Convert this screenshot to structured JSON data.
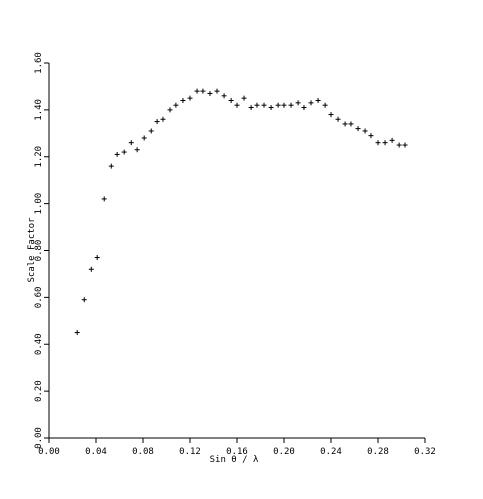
{
  "chart_data": {
    "type": "scatter",
    "title": "",
    "xlabel": "Sin θ / λ",
    "ylabel": "Scale Factor",
    "xlim": [
      0.0,
      0.32
    ],
    "ylim": [
      0.0,
      1.6
    ],
    "x_ticks": [
      "0.00",
      "0.04",
      "0.08",
      "0.12",
      "0.16",
      "0.20",
      "0.24",
      "0.28",
      "0.32"
    ],
    "y_ticks": [
      "0.00",
      "0.20",
      "0.40",
      "0.60",
      "0.80",
      "1.00",
      "1.20",
      "1.40",
      "1.60"
    ],
    "grid": false,
    "marker": "plus",
    "series": [
      {
        "x": [
          0.024,
          0.03,
          0.036,
          0.041,
          0.047,
          0.053,
          0.058,
          0.064,
          0.07,
          0.075,
          0.081,
          0.087,
          0.092,
          0.097,
          0.103,
          0.108,
          0.114,
          0.12,
          0.126,
          0.131,
          0.137,
          0.143,
          0.149,
          0.155,
          0.16,
          0.166,
          0.172,
          0.177,
          0.183,
          0.189,
          0.195,
          0.2,
          0.206,
          0.212,
          0.217,
          0.223,
          0.229,
          0.235,
          0.24,
          0.246,
          0.252,
          0.257,
          0.263,
          0.269,
          0.274,
          0.28,
          0.286,
          0.292,
          0.298,
          0.303
        ],
        "y": [
          0.45,
          0.59,
          0.72,
          0.77,
          1.02,
          1.16,
          1.21,
          1.22,
          1.26,
          1.23,
          1.28,
          1.31,
          1.35,
          1.36,
          1.4,
          1.42,
          1.44,
          1.45,
          1.48,
          1.48,
          1.47,
          1.48,
          1.46,
          1.44,
          1.42,
          1.45,
          1.41,
          1.42,
          1.42,
          1.41,
          1.42,
          1.42,
          1.42,
          1.43,
          1.41,
          1.43,
          1.44,
          1.42,
          1.38,
          1.36,
          1.34,
          1.34,
          1.32,
          1.31,
          1.29,
          1.26,
          1.26,
          1.27,
          1.25,
          1.25
        ]
      }
    ]
  }
}
